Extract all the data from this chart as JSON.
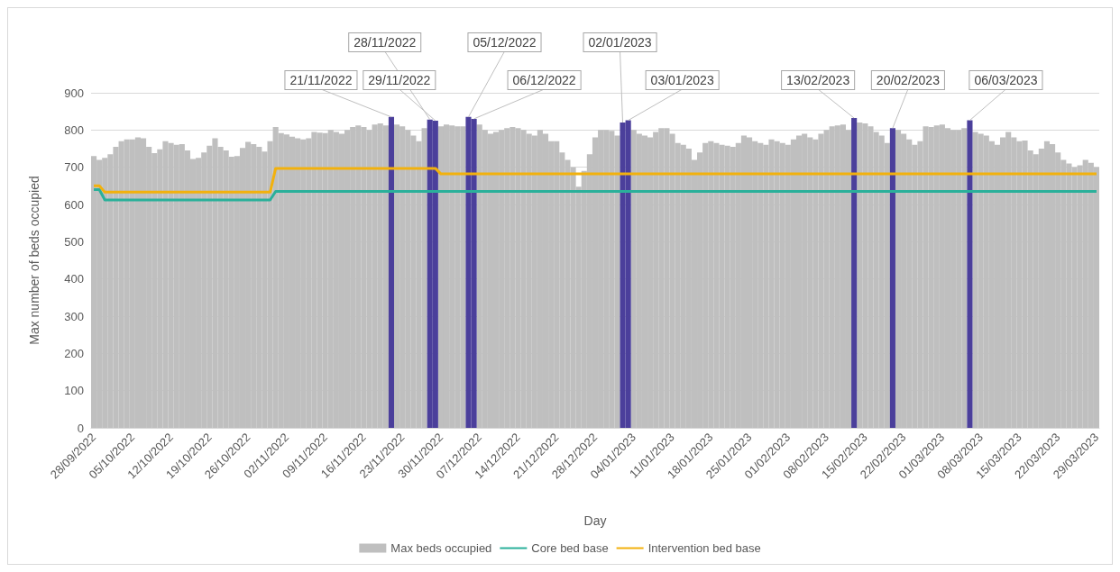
{
  "chart_data": {
    "type": "bar",
    "xlabel": "Day",
    "ylabel": "Max number of beds occupied",
    "x": [
      "2022-09-28",
      "2022-09-29",
      "2022-09-30",
      "2022-10-01",
      "2022-10-02",
      "2022-10-03",
      "2022-10-04",
      "2022-10-05",
      "2022-10-06",
      "2022-10-07",
      "2022-10-08",
      "2022-10-09",
      "2022-10-10",
      "2022-10-11",
      "2022-10-12",
      "2022-10-13",
      "2022-10-14",
      "2022-10-15",
      "2022-10-16",
      "2022-10-17",
      "2022-10-18",
      "2022-10-19",
      "2022-10-20",
      "2022-10-21",
      "2022-10-22",
      "2022-10-23",
      "2022-10-24",
      "2022-10-25",
      "2022-10-26",
      "2022-10-27",
      "2022-10-28",
      "2022-10-29",
      "2022-10-30",
      "2022-10-31",
      "2022-11-01",
      "2022-11-02",
      "2022-11-03",
      "2022-11-04",
      "2022-11-05",
      "2022-11-06",
      "2022-11-07",
      "2022-11-08",
      "2022-11-09",
      "2022-11-10",
      "2022-11-11",
      "2022-11-12",
      "2022-11-13",
      "2022-11-14",
      "2022-11-15",
      "2022-11-16",
      "2022-11-17",
      "2022-11-18",
      "2022-11-19",
      "2022-11-20",
      "2022-11-21",
      "2022-11-22",
      "2022-11-23",
      "2022-11-24",
      "2022-11-25",
      "2022-11-26",
      "2022-11-27",
      "2022-11-28",
      "2022-11-29",
      "2022-11-30",
      "2022-12-01",
      "2022-12-02",
      "2022-12-03",
      "2022-12-04",
      "2022-12-05",
      "2022-12-06",
      "2022-12-07",
      "2022-12-08",
      "2022-12-09",
      "2022-12-10",
      "2022-12-11",
      "2022-12-12",
      "2022-12-13",
      "2022-12-14",
      "2022-12-15",
      "2022-12-16",
      "2022-12-17",
      "2022-12-18",
      "2022-12-19",
      "2022-12-20",
      "2022-12-21",
      "2022-12-22",
      "2022-12-23",
      "2022-12-24",
      "2022-12-25",
      "2022-12-26",
      "2022-12-27",
      "2022-12-28",
      "2022-12-29",
      "2022-12-30",
      "2022-12-31",
      "2023-01-01",
      "2023-01-02",
      "2023-01-03",
      "2023-01-04",
      "2023-01-05",
      "2023-01-06",
      "2023-01-07",
      "2023-01-08",
      "2023-01-09",
      "2023-01-10",
      "2023-01-11",
      "2023-01-12",
      "2023-01-13",
      "2023-01-14",
      "2023-01-15",
      "2023-01-16",
      "2023-01-17",
      "2023-01-18",
      "2023-01-19",
      "2023-01-20",
      "2023-01-21",
      "2023-01-22",
      "2023-01-23",
      "2023-01-24",
      "2023-01-25",
      "2023-01-26",
      "2023-01-27",
      "2023-01-28",
      "2023-01-29",
      "2023-01-30",
      "2023-01-31",
      "2023-02-01",
      "2023-02-02",
      "2023-02-03",
      "2023-02-04",
      "2023-02-05",
      "2023-02-06",
      "2023-02-07",
      "2023-02-08",
      "2023-02-09",
      "2023-02-10",
      "2023-02-11",
      "2023-02-12",
      "2023-02-13",
      "2023-02-14",
      "2023-02-15",
      "2023-02-16",
      "2023-02-17",
      "2023-02-18",
      "2023-02-19",
      "2023-02-20",
      "2023-02-21",
      "2023-02-22",
      "2023-02-23",
      "2023-02-24",
      "2023-02-25",
      "2023-02-26",
      "2023-02-27",
      "2023-02-28",
      "2023-03-01",
      "2023-03-02",
      "2023-03-03",
      "2023-03-04",
      "2023-03-05",
      "2023-03-06",
      "2023-03-07",
      "2023-03-08",
      "2023-03-09",
      "2023-03-10",
      "2023-03-11",
      "2023-03-12",
      "2023-03-13",
      "2023-03-14",
      "2023-03-15",
      "2023-03-16",
      "2023-03-17",
      "2023-03-18",
      "2023-03-19",
      "2023-03-20",
      "2023-03-21",
      "2023-03-22",
      "2023-03-23",
      "2023-03-24",
      "2023-03-25",
      "2023-03-26",
      "2023-03-27",
      "2023-03-28",
      "2023-03-29"
    ],
    "series": [
      {
        "name": "Max beds occupied",
        "color": "#bfbfbf",
        "values": [
          730,
          720,
          725,
          735,
          755,
          770,
          775,
          775,
          780,
          778,
          755,
          738,
          748,
          770,
          765,
          760,
          762,
          745,
          722,
          725,
          740,
          758,
          778,
          755,
          745,
          728,
          730,
          752,
          768,
          762,
          755,
          742,
          770,
          808,
          792,
          788,
          782,
          778,
          775,
          778,
          795,
          793,
          792,
          800,
          795,
          790,
          800,
          808,
          812,
          808,
          800,
          815,
          818,
          812,
          null,
          815,
          810,
          800,
          785,
          770,
          805,
          null,
          null,
          810,
          815,
          812,
          810,
          810,
          null,
          null,
          815,
          800,
          790,
          795,
          800,
          805,
          808,
          805,
          800,
          790,
          785,
          800,
          790,
          770,
          770,
          740,
          720,
          700,
          648,
          690,
          735,
          780,
          800,
          800,
          798,
          785,
          null,
          null,
          800,
          790,
          785,
          780,
          795,
          805,
          805,
          790,
          765,
          760,
          750,
          720,
          740,
          765,
          770,
          765,
          760,
          758,
          755,
          765,
          785,
          780,
          770,
          765,
          760,
          775,
          770,
          765,
          760,
          775,
          785,
          790,
          780,
          775,
          790,
          800,
          810,
          812,
          815,
          800,
          null,
          820,
          818,
          810,
          795,
          785,
          765,
          null,
          800,
          790,
          775,
          760,
          770,
          810,
          808,
          812,
          815,
          805,
          800,
          800,
          805,
          null,
          795,
          790,
          785,
          770,
          760,
          780,
          795,
          780,
          770,
          772,
          745,
          735,
          750,
          770,
          762,
          740,
          720,
          710,
          700,
          705,
          720,
          712,
          700
        ]
      },
      {
        "type": "bar",
        "color": "#4b3f9b",
        "x": [
          "2022-11-21",
          "2022-11-28",
          "2022-11-29",
          "2022-12-05",
          "2022-12-06",
          "2023-01-02",
          "2023-01-03",
          "2023-02-13",
          "2023-02-20",
          "2023-03-06"
        ],
        "values": [
          835,
          828,
          825,
          835,
          830,
          820,
          826,
          832,
          805,
          826
        ]
      },
      {
        "name": "Core bed base",
        "type": "line",
        "color": "#2ab09a",
        "x": [
          "2022-09-28",
          "2022-09-29",
          "2022-09-30",
          "2022-10-30",
          "2022-10-31",
          "2023-03-29"
        ],
        "values": [
          640,
          640,
          612,
          612,
          635,
          635
        ]
      },
      {
        "name": "Intervention bed base",
        "type": "line",
        "color": "#f2b10d",
        "x": [
          "2022-09-28",
          "2022-09-29",
          "2022-09-30",
          "2022-10-30",
          "2022-10-31",
          "2022-11-29",
          "2022-11-30",
          "2023-03-29"
        ],
        "values": [
          650,
          650,
          633,
          633,
          697,
          697,
          682,
          682
        ]
      }
    ],
    "xlim": [
      "2022-09-27T12:00",
      "2023-03-29T12:00"
    ],
    "xticks": [
      {
        "value": "2022-09-28",
        "label": "28/09/2022"
      },
      {
        "value": "2022-10-05",
        "label": "05/10/2022"
      },
      {
        "value": "2022-10-12",
        "label": "12/10/2022"
      },
      {
        "value": "2022-10-19",
        "label": "19/10/2022"
      },
      {
        "value": "2022-10-26",
        "label": "26/10/2022"
      },
      {
        "value": "2022-11-02",
        "label": "02/11/2022"
      },
      {
        "value": "2022-11-09",
        "label": "09/11/2022"
      },
      {
        "value": "2022-11-16",
        "label": "16/11/2022"
      },
      {
        "value": "2022-11-23",
        "label": "23/11/2022"
      },
      {
        "value": "2022-11-30",
        "label": "30/11/2022"
      },
      {
        "value": "2022-12-07",
        "label": "07/12/2022"
      },
      {
        "value": "2022-12-14",
        "label": "14/12/2022"
      },
      {
        "value": "2022-12-21",
        "label": "21/12/2022"
      },
      {
        "value": "2022-12-28",
        "label": "28/12/2022"
      },
      {
        "value": "2023-01-04",
        "label": "04/01/2023"
      },
      {
        "value": "2023-01-11",
        "label": "11/01/2023"
      },
      {
        "value": "2023-01-18",
        "label": "18/01/2023"
      },
      {
        "value": "2023-01-25",
        "label": "25/01/2023"
      },
      {
        "value": "2023-02-01",
        "label": "01/02/2023"
      },
      {
        "value": "2023-02-08",
        "label": "08/02/2023"
      },
      {
        "value": "2023-02-15",
        "label": "15/02/2023"
      },
      {
        "value": "2023-02-22",
        "label": "22/02/2023"
      },
      {
        "value": "2023-03-01",
        "label": "01/03/2023"
      },
      {
        "value": "2023-03-08",
        "label": "08/03/2023"
      },
      {
        "value": "2023-03-15",
        "label": "15/03/2023"
      },
      {
        "value": "2023-03-22",
        "label": "22/03/2023"
      },
      {
        "value": "2023-03-29",
        "label": "29/03/2023"
      }
    ],
    "ylim": [
      0,
      900
    ],
    "yticks": [
      0,
      100,
      200,
      300,
      400,
      500,
      600,
      700,
      800,
      900
    ],
    "grid": "y",
    "legend": "bottom",
    "marker": "none",
    "line_style": "solid",
    "annotations": [
      {
        "text": "21/11/2022",
        "x": "2022-11-21",
        "y": 835
      },
      {
        "text": "28/11/2022",
        "x": "2022-11-28",
        "y": 828
      },
      {
        "text": "29/11/2022",
        "x": "2022-11-29",
        "y": 825
      },
      {
        "text": "05/12/2022",
        "x": "2022-12-05",
        "y": 835
      },
      {
        "text": "06/12/2022",
        "x": "2022-12-06",
        "y": 830
      },
      {
        "text": "02/01/2023",
        "x": "2023-01-02",
        "y": 820
      },
      {
        "text": "03/01/2023",
        "x": "2023-01-03",
        "y": 826
      },
      {
        "text": "13/02/2023",
        "x": "2023-02-13",
        "y": 832
      },
      {
        "text": "20/02/2023",
        "x": "2023-02-20",
        "y": 805
      },
      {
        "text": "06/03/2023",
        "x": "2023-03-06",
        "y": 826
      }
    ]
  }
}
